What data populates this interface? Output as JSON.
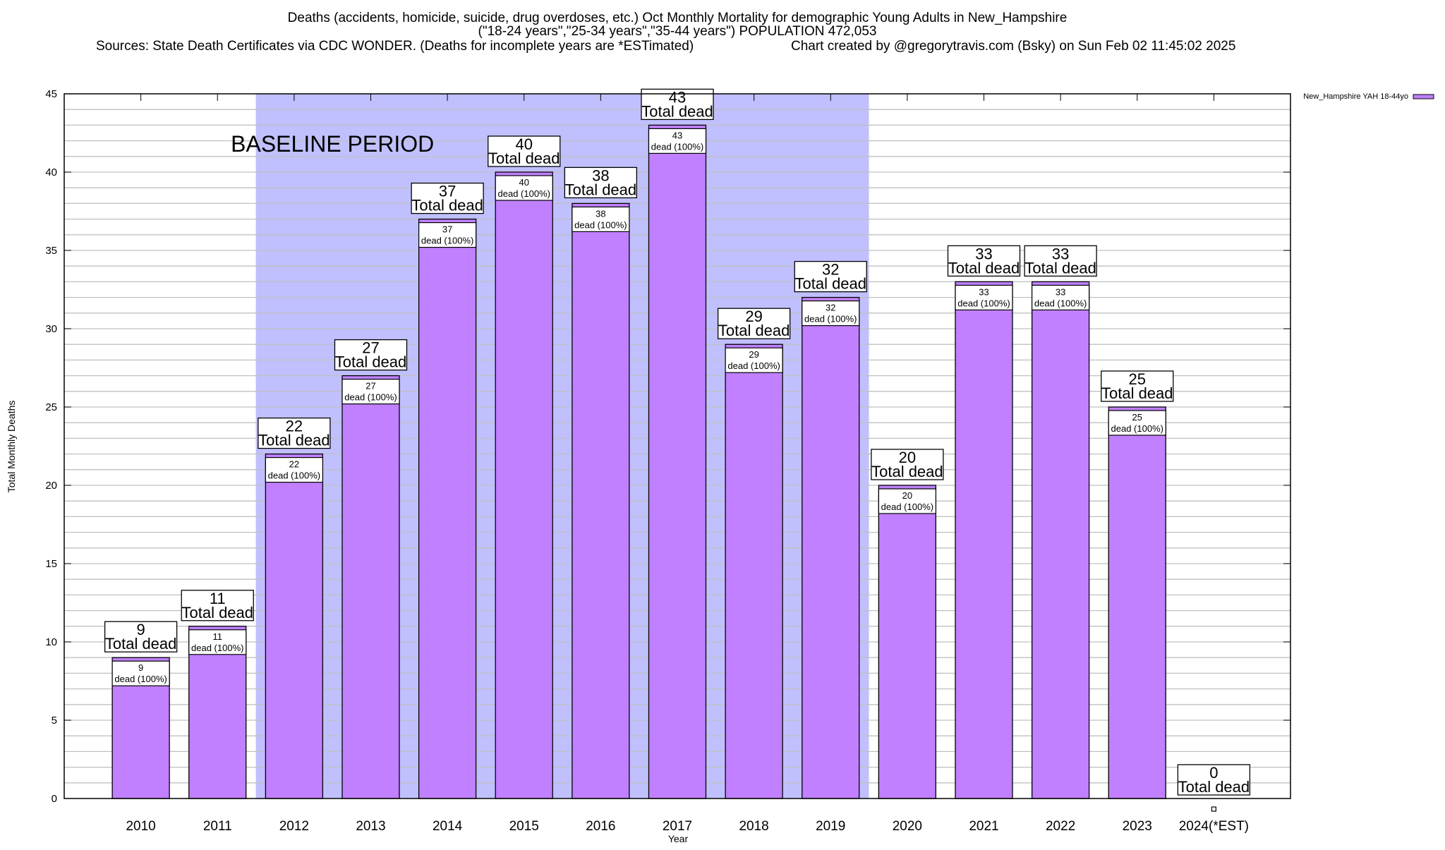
{
  "chart_data": {
    "type": "bar",
    "title_lines": [
      "Deaths (accidents, homicide, suicide, drug overdoses, etc.) Oct Monthly Mortality for demographic Young Adults in New_Hampshire",
      "(\"18-24 years\",\"25-34 years\",\"35-44 years\") POPULATION 472,053"
    ],
    "sources": "Sources: State Death Certificates via CDC WONDER. (Deaths for incomplete years are *ESTimated)",
    "credit": "Chart created by @gregorytravis.com (Bsky) on Sun Feb 02 11:45:02 2025",
    "xlabel": "Year",
    "ylabel": "Total Monthly Deaths",
    "ylim": [
      0,
      45
    ],
    "yticks": [
      0,
      5,
      10,
      15,
      20,
      25,
      30,
      35,
      40,
      45
    ],
    "grid": "horizontal, every 1 unit",
    "categories": [
      "2010",
      "2011",
      "2012",
      "2013",
      "2014",
      "2015",
      "2016",
      "2017",
      "2018",
      "2019",
      "2020",
      "2021",
      "2022",
      "2023",
      "2024(*EST)"
    ],
    "series": [
      {
        "name": "New_Hampshire YAH 18-44yo",
        "color": "#c080ff",
        "values": [
          9,
          11,
          22,
          27,
          37,
          40,
          38,
          43,
          29,
          32,
          20,
          33,
          33,
          25,
          0
        ]
      }
    ],
    "outer_label_suffix": "Total dead",
    "inner_label_suffix": "dead (100%)",
    "baseline": {
      "label": "BASELINE PERIOD",
      "from": "2012",
      "to": "2019",
      "color": "#c0c0ff"
    },
    "legend_position": "top-right, outside plot"
  }
}
